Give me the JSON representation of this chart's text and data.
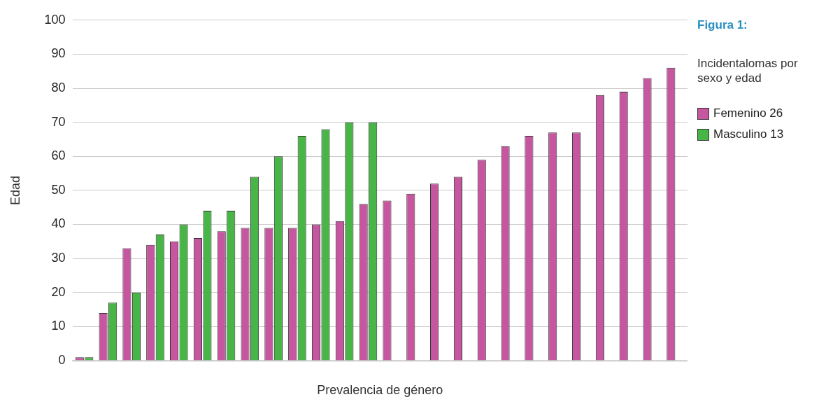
{
  "chart_data": {
    "type": "bar",
    "title": "Figura 1:",
    "subtitle": "Incidentalomas por sexo y edad",
    "xlabel": "Prevalencia de género",
    "ylabel": "Edad",
    "categories": [
      null,
      null,
      null,
      null,
      null,
      null,
      null,
      null,
      null,
      null,
      null,
      null,
      null,
      null,
      null,
      null,
      null,
      null,
      null,
      null,
      null,
      null,
      null,
      null,
      null,
      null
    ],
    "series": [
      {
        "name": "Femenino 26",
        "color": "#c5569f",
        "values": [
          1,
          14,
          33,
          34,
          35,
          36,
          38,
          39,
          39,
          39,
          40,
          41,
          46,
          47,
          49,
          52,
          54,
          59,
          63,
          66,
          67,
          67,
          78,
          79,
          83,
          86
        ]
      },
      {
        "name": "Masculino 13",
        "color": "#47b647",
        "values": [
          1,
          17,
          20,
          37,
          40,
          44,
          44,
          54,
          60,
          66,
          68,
          70,
          70,
          null,
          null,
          null,
          null,
          null,
          null,
          null,
          null,
          null,
          null,
          null,
          null,
          null
        ]
      }
    ],
    "ylim": [
      0,
      100
    ],
    "yticks": [
      0,
      10,
      20,
      30,
      40,
      50,
      60,
      70,
      80,
      90,
      100
    ],
    "grid": "y",
    "legend": "right"
  }
}
